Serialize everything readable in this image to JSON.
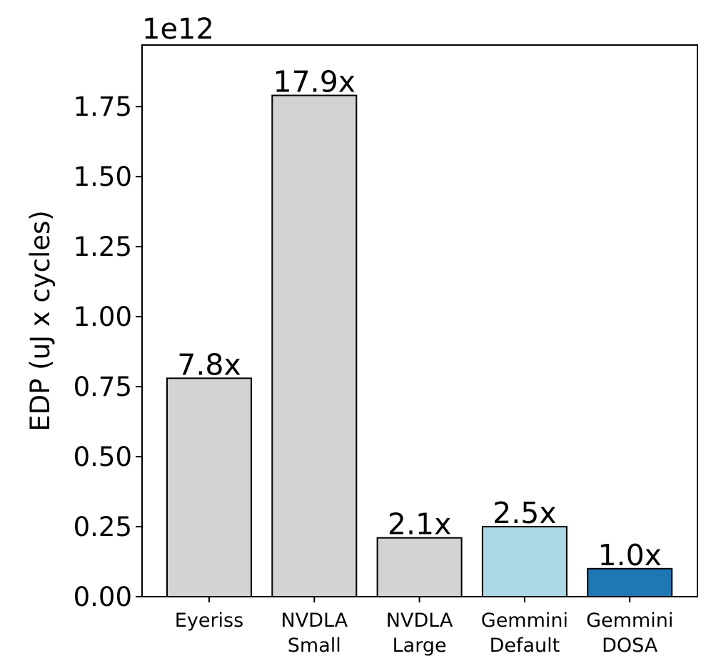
{
  "chart_data": {
    "type": "bar",
    "title": "",
    "xlabel": "",
    "ylabel": "EDP (uJ x cycles)",
    "y_offset_text": "1e12",
    "ylim": [
      0,
      1.97
    ],
    "yticks": [
      0.0,
      0.25,
      0.5,
      0.75,
      1.0,
      1.25,
      1.5,
      1.75
    ],
    "ytick_labels": [
      "0.00",
      "0.25",
      "0.50",
      "0.75",
      "1.00",
      "1.25",
      "1.50",
      "1.75"
    ],
    "categories": [
      [
        "Eyeriss"
      ],
      [
        "NVDLA",
        "Small"
      ],
      [
        "NVDLA",
        "Large"
      ],
      [
        "Gemmini",
        "Default"
      ],
      [
        "Gemmini",
        "DOSA"
      ]
    ],
    "values": [
      0.78,
      1.79,
      0.21,
      0.25,
      0.1
    ],
    "bar_labels": [
      "7.8x",
      "17.9x",
      "2.1x",
      "2.5x",
      "1.0x"
    ],
    "bar_colors": [
      "#d3d3d3",
      "#d3d3d3",
      "#d3d3d3",
      "#add8e6",
      "#1f77b4"
    ],
    "grid": false
  }
}
